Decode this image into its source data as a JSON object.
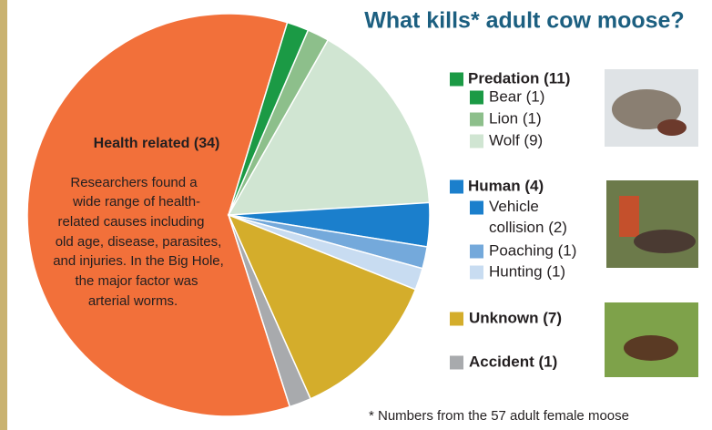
{
  "chart_data": {
    "type": "pie",
    "title": "What kills* adult cow moose?",
    "categories": [
      "Health related (34)",
      "Bear (1)",
      "Lion (1)",
      "Wolf (9)",
      "Vehicle collision (2)",
      "Poaching (1)",
      "Hunting (1)",
      "Unknown (7)",
      "Accident (1)"
    ],
    "values": [
      34,
      1,
      1,
      9,
      2,
      1,
      1,
      7,
      1
    ],
    "colors": [
      "#f2703a",
      "#1b9a45",
      "#8dbf8b",
      "#d0e5d2",
      "#1b7fcc",
      "#74a9db",
      "#c8dcf1",
      "#d4ad2b",
      "#a8aaad"
    ],
    "legend_groups": [
      {
        "label": "Predation (11)",
        "color": "#1b9a45"
      },
      {
        "label": "Human (4)",
        "color": "#1b7fcc"
      }
    ],
    "annotation": [
      "Researchers found a",
      "wide range of health-",
      "related causes including",
      "old age, disease, parasites,",
      "and injuries. In the Big Hole,",
      "the major factor was",
      "arterial worms."
    ],
    "footnote": "* Numbers from the 57 adult female moose"
  }
}
